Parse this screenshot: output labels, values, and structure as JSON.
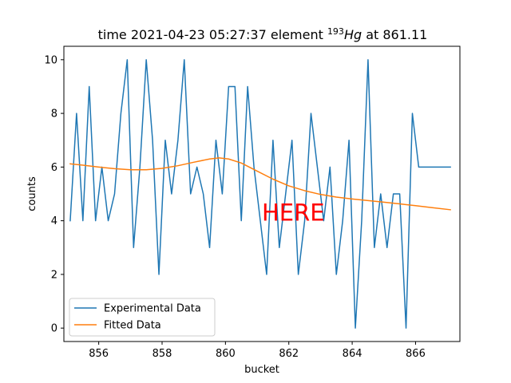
{
  "chart_data": {
    "type": "line",
    "title": {
      "prefix": "time 2021-04-23 05:27:37 element ",
      "isotope_mass": "193",
      "isotope_symbol": "Hg",
      "suffix": " at 861.11"
    },
    "xlabel": "bucket",
    "ylabel": "counts",
    "xlim": [
      84.9,
      867.4
    ],
    "xlim_note": "",
    "xrange": [
      854.9,
      867.4
    ],
    "ylim": [
      -0.5,
      10.5
    ],
    "x_ticks": [
      856,
      858,
      860,
      862,
      864,
      866
    ],
    "x_tick_labels": [
      "856",
      "858",
      "860",
      "862",
      "864",
      "866"
    ],
    "y_ticks": [
      0,
      2,
      4,
      6,
      8,
      10
    ],
    "y_tick_labels": [
      "0",
      "2",
      "4",
      "6",
      "8",
      "10"
    ],
    "grid": false,
    "legend_position": "lower-left",
    "series": [
      {
        "name": "Experimental Data",
        "color": "#1f77b4",
        "x": [
          855.1,
          855.3,
          855.5,
          855.7,
          855.9,
          856.1,
          856.3,
          856.5,
          856.7,
          856.9,
          857.1,
          857.3,
          857.5,
          857.7,
          857.9,
          858.1,
          858.3,
          858.5,
          858.7,
          858.9,
          859.1,
          859.3,
          859.5,
          859.7,
          859.9,
          860.1,
          860.3,
          860.5,
          860.7,
          860.9,
          861.1,
          861.3,
          861.5,
          861.7,
          861.9,
          862.1,
          862.3,
          862.5,
          862.7,
          862.9,
          863.1,
          863.3,
          863.5,
          863.7,
          863.9,
          864.1,
          864.3,
          864.5,
          864.7,
          864.9,
          865.1,
          865.3,
          865.5,
          865.7,
          865.9,
          866.1,
          866.3,
          866.5,
          866.7,
          866.9,
          867.1
        ],
        "y": [
          4,
          8,
          4,
          9,
          4,
          6,
          4,
          5,
          8,
          10,
          3,
          6,
          10,
          7,
          2,
          7,
          5,
          7,
          10,
          5,
          6,
          5,
          3,
          7,
          5,
          9,
          9,
          4,
          9,
          6,
          4,
          2,
          7,
          3,
          5,
          7,
          2,
          4,
          8,
          6,
          4,
          6,
          2,
          4,
          7,
          0,
          4,
          10,
          3,
          5,
          3,
          5,
          5,
          0,
          8,
          6,
          6,
          6,
          6,
          6,
          6
        ]
      },
      {
        "name": "Fitted Data",
        "color": "#ff7f0e",
        "x": [
          855.1,
          855.5,
          856.0,
          856.5,
          857.0,
          857.5,
          858.0,
          858.5,
          859.0,
          859.5,
          859.8,
          860.1,
          860.5,
          861.0,
          861.5,
          862.0,
          862.5,
          863.0,
          863.5,
          864.0,
          864.5,
          865.0,
          865.5,
          866.0,
          866.5,
          867.1
        ],
        "y": [
          6.12,
          6.07,
          6.0,
          5.94,
          5.9,
          5.9,
          5.95,
          6.05,
          6.18,
          6.3,
          6.34,
          6.3,
          6.15,
          5.85,
          5.55,
          5.3,
          5.12,
          4.98,
          4.88,
          4.81,
          4.75,
          4.69,
          4.63,
          4.56,
          4.49,
          4.41
        ]
      }
    ],
    "annotations": [
      {
        "text": "HERE",
        "x": 861.15,
        "y": 4.3,
        "color": "#ff0000"
      }
    ]
  }
}
